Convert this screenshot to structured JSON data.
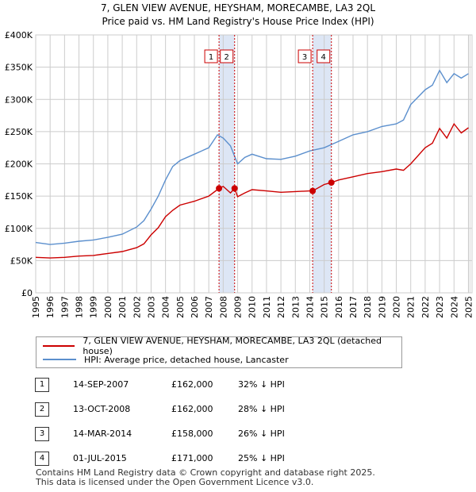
{
  "chart_data": {
    "type": "line",
    "title": "7, GLEN VIEW AVENUE, HEYSHAM, MORECAMBE, LA3 2QL",
    "subtitle": "Price paid vs. HM Land Registry's House Price Index (HPI)",
    "xlim": [
      1995,
      2025.25
    ],
    "ylim": [
      0,
      400000
    ],
    "y_ticks": [
      {
        "value": 0,
        "label": "£0"
      },
      {
        "value": 50000,
        "label": "£50K"
      },
      {
        "value": 100000,
        "label": "£100K"
      },
      {
        "value": 150000,
        "label": "£150K"
      },
      {
        "value": 200000,
        "label": "£200K"
      },
      {
        "value": 250000,
        "label": "£250K"
      },
      {
        "value": 300000,
        "label": "£300K"
      },
      {
        "value": 350000,
        "label": "£350K"
      },
      {
        "value": 400000,
        "label": "£400K"
      }
    ],
    "x_ticks": [
      "1995",
      "1996",
      "1997",
      "1998",
      "1999",
      "2000",
      "2001",
      "2002",
      "2003",
      "2004",
      "2005",
      "2006",
      "2007",
      "2008",
      "2009",
      "2010",
      "2011",
      "2012",
      "2013",
      "2014",
      "2015",
      "2016",
      "2017",
      "2018",
      "2019",
      "2020",
      "2021",
      "2022",
      "2023",
      "2024",
      "2025"
    ],
    "grid": true,
    "series": [
      {
        "name": "7, GLEN VIEW AVENUE, HEYSHAM, MORECAMBE, LA3 2QL (detached house)",
        "color": "#cc0000",
        "x": [
          1995,
          1996,
          1997,
          1998,
          1999,
          2000,
          2001,
          2002,
          2002.5,
          2003,
          2003.5,
          2004,
          2004.5,
          2005,
          2006,
          2007,
          2007.71,
          2008,
          2008.5,
          2008.79,
          2009,
          2009.5,
          2010,
          2011,
          2012,
          2013,
          2014,
          2014.2,
          2015,
          2015.5,
          2016,
          2017,
          2018,
          2019,
          2020,
          2020.5,
          2021,
          2022,
          2022.5,
          2023,
          2023.5,
          2024,
          2024.5,
          2025
        ],
        "values": [
          55000,
          54000,
          55000,
          57000,
          58000,
          61000,
          64000,
          70000,
          76000,
          90000,
          101000,
          118000,
          128000,
          136000,
          142000,
          150000,
          162000,
          165000,
          155000,
          162000,
          149000,
          155000,
          160000,
          158000,
          156000,
          157000,
          158000,
          158000,
          168000,
          171000,
          175000,
          180000,
          185000,
          188000,
          192000,
          190000,
          200000,
          225000,
          232000,
          255000,
          240000,
          262000,
          248000,
          256000
        ]
      },
      {
        "name": "HPI: Average price, detached house, Lancaster",
        "color": "#5b8fcd",
        "x": [
          1995,
          1996,
          1997,
          1998,
          1999,
          2000,
          2001,
          2002,
          2002.5,
          2003,
          2003.5,
          2004,
          2004.5,
          2005,
          2006,
          2007,
          2007.6,
          2008,
          2008.5,
          2009,
          2009.5,
          2010,
          2011,
          2012,
          2013,
          2014,
          2015,
          2016,
          2017,
          2018,
          2019,
          2020,
          2020.5,
          2021,
          2022,
          2022.5,
          2023,
          2023.5,
          2024,
          2024.5,
          2025
        ],
        "values": [
          78000,
          75000,
          77000,
          80000,
          82000,
          86000,
          91000,
          102000,
          112000,
          130000,
          150000,
          175000,
          196000,
          205000,
          215000,
          225000,
          245000,
          240000,
          228000,
          200000,
          210000,
          215000,
          208000,
          207000,
          212000,
          220000,
          225000,
          235000,
          245000,
          250000,
          258000,
          262000,
          268000,
          292000,
          315000,
          322000,
          345000,
          326000,
          340000,
          333000,
          340000
        ]
      }
    ],
    "sales": [
      {
        "label": "1",
        "x": 2007.71,
        "value": 162000,
        "band_to": 2008.79
      },
      {
        "label": "2",
        "x": 2008.79,
        "value": 162000
      },
      {
        "label": "3",
        "x": 2014.2,
        "value": 158000,
        "band_to": 2015.5
      },
      {
        "label": "4",
        "x": 2015.5,
        "value": 171000
      }
    ]
  },
  "legend": {
    "price_paid": "7, GLEN VIEW AVENUE, HEYSHAM, MORECAMBE, LA3 2QL (detached house)",
    "hpi": "HPI: Average price, detached house, Lancaster"
  },
  "transactions": [
    {
      "num": "1",
      "date": "14-SEP-2007",
      "price": "£162,000",
      "hpi": "32% ↓ HPI"
    },
    {
      "num": "2",
      "date": "13-OCT-2008",
      "price": "£162,000",
      "hpi": "28% ↓ HPI"
    },
    {
      "num": "3",
      "date": "14-MAR-2014",
      "price": "£158,000",
      "hpi": "26% ↓ HPI"
    },
    {
      "num": "4",
      "date": "01-JUL-2015",
      "price": "£171,000",
      "hpi": "25% ↓ HPI"
    }
  ],
  "footer": {
    "line1": "Contains HM Land Registry data © Crown copyright and database right 2025.",
    "line2": "This data is licensed under the Open Government Licence v3.0."
  },
  "colors": {
    "red": "#cc0000",
    "blue": "#5b8fcd",
    "band": "#dde6f5",
    "grid": "#cccccc"
  }
}
